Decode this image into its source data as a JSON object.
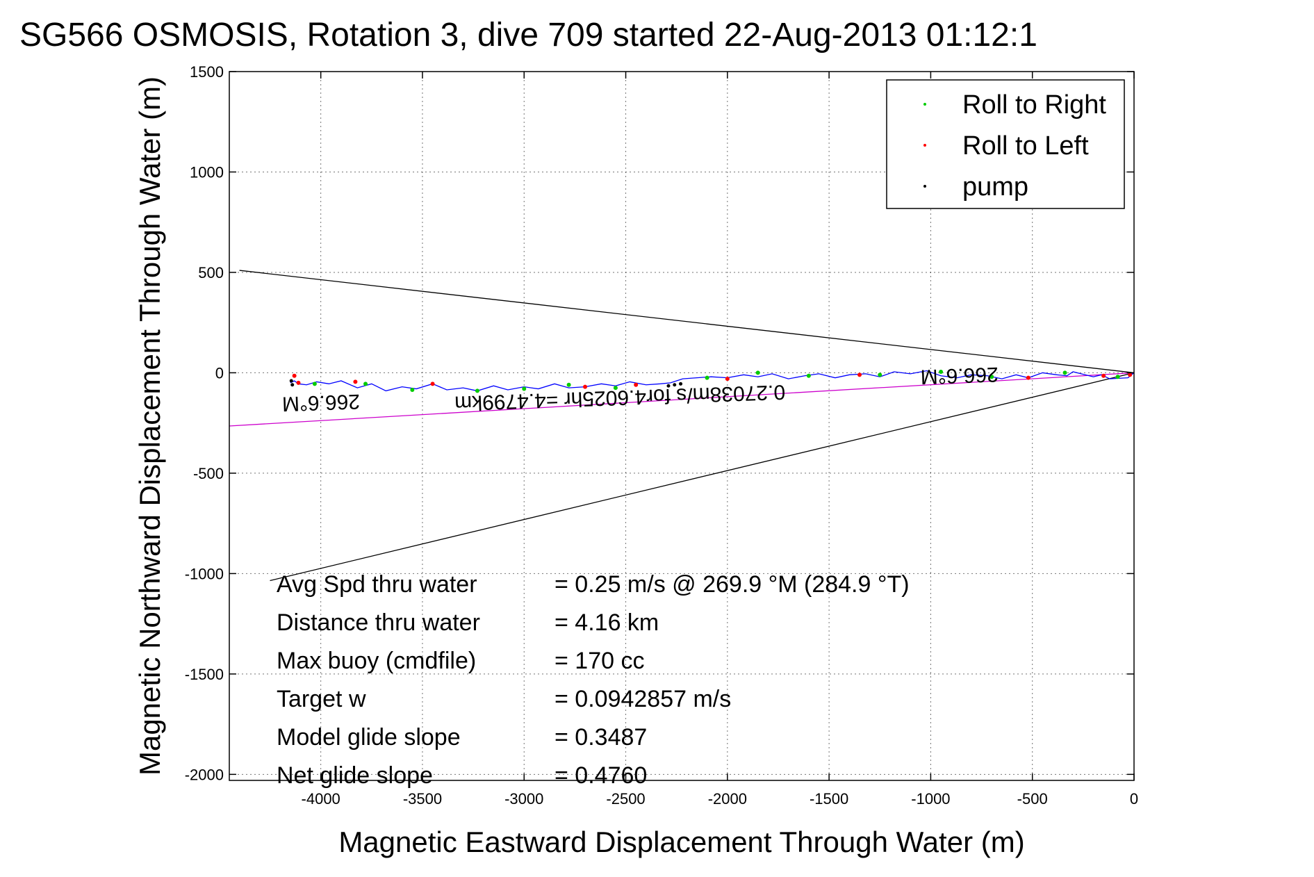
{
  "chart_data": {
    "type": "scatter",
    "title": "SG566 OSMOSIS, Rotation 3, dive 709 started 22-Aug-2013 01:12:1",
    "xlabel": "Magnetic Eastward Displacement Through Water (m)",
    "ylabel": "Magnetic Northward Displacement Through Water (m)",
    "xlim": [
      -4450,
      0
    ],
    "ylim": [
      -2030,
      1500
    ],
    "grid": true,
    "x_ticks": [
      -4000,
      -3500,
      -3000,
      -2500,
      -2000,
      -1500,
      -1000,
      -500,
      0
    ],
    "x_tick_labels": [
      "-4000",
      "-3500",
      "-3000",
      "-2500",
      "-2000",
      "-1500",
      "-1000",
      "-500",
      "0"
    ],
    "y_ticks": [
      1500,
      1000,
      500,
      0,
      -500,
      -1000,
      -1500,
      -2000
    ],
    "y_tick_labels": [
      "1500",
      "1000",
      "500",
      "0",
      "-500",
      "-1000",
      "-1500",
      "-2000"
    ],
    "legend": {
      "placement": "top-right",
      "entries": [
        {
          "label": "Roll to Right",
          "color": "#00cc00"
        },
        {
          "label": "Roll to Left",
          "color": "#ff0000"
        },
        {
          "label": "pump",
          "color": "#000000"
        }
      ]
    },
    "series": [
      {
        "name": "track",
        "color": "#0000ff",
        "x": [
          0,
          -30,
          -120,
          -160,
          -200,
          -260,
          -300,
          -330,
          -380,
          -450,
          -520,
          -580,
          -650,
          -720,
          -800,
          -870,
          -950,
          -1020,
          -1100,
          -1180,
          -1250,
          -1320,
          -1400,
          -1470,
          -1550,
          -1620,
          -1700,
          -1780,
          -1850,
          -1920,
          -2000,
          -2080,
          -2150,
          -2220,
          -2280,
          -2330,
          -2400,
          -2480,
          -2550,
          -2620,
          -2700,
          -2780,
          -2850,
          -2930,
          -3000,
          -3080,
          -3150,
          -3230,
          -3300,
          -3380,
          -3450,
          -3530,
          -3600,
          -3680,
          -3750,
          -3820,
          -3900,
          -3960,
          -4020,
          -4070,
          -4110,
          -4130,
          -4150
        ],
        "y": [
          0,
          -25,
          -30,
          -10,
          -20,
          -5,
          5,
          -15,
          -10,
          0,
          -25,
          -10,
          -30,
          -15,
          -10,
          -25,
          -15,
          10,
          -5,
          5,
          -20,
          -5,
          -10,
          -25,
          -5,
          -15,
          -30,
          -5,
          -20,
          -10,
          -25,
          -20,
          -25,
          -30,
          -50,
          -55,
          -60,
          -45,
          -65,
          -55,
          -70,
          -75,
          -55,
          -80,
          -70,
          -85,
          -65,
          -90,
          -75,
          -85,
          -55,
          -80,
          -70,
          -90,
          -55,
          -75,
          -40,
          -55,
          -45,
          -60,
          -55,
          -40,
          -50
        ]
      },
      {
        "name": "Roll to Right",
        "color": "#00cc00",
        "x": [
          -80,
          -340,
          -700,
          -950,
          -1250,
          -1600,
          -1850,
          -2100,
          -2550,
          -2780,
          -3000,
          -3230,
          -3550,
          -3780,
          -4030
        ],
        "y": [
          -20,
          0,
          -20,
          5,
          -10,
          -15,
          0,
          -25,
          -75,
          -60,
          -80,
          -90,
          -85,
          -55,
          -55
        ]
      },
      {
        "name": "Roll to Left",
        "color": "#ff0000",
        "x": [
          -20,
          -150,
          -520,
          -1350,
          -2000,
          -2450,
          -2700,
          -3450,
          -3830,
          -4110,
          -4130
        ],
        "y": [
          -10,
          -15,
          -25,
          -10,
          -30,
          -60,
          -70,
          -55,
          -45,
          -50,
          -15
        ]
      },
      {
        "name": "pump",
        "color": "#000000",
        "x": [
          -2230,
          -2260,
          -2290,
          -4140,
          -4145
        ],
        "y": [
          -55,
          -60,
          -65,
          -60,
          -40
        ]
      }
    ],
    "lines": [
      {
        "color": "#000000",
        "x": [
          0,
          -4400
        ],
        "y": [
          0,
          510
        ]
      },
      {
        "color": "#000000",
        "x": [
          0,
          -4250
        ],
        "y": [
          0,
          -1035
        ]
      },
      {
        "color": "#cc00cc",
        "x": [
          0,
          -4450
        ],
        "y": [
          0,
          -265
        ]
      }
    ],
    "rotated_annotations": [
      {
        "text": "266.6°M",
        "x": -4000,
        "y": -115
      },
      {
        "text": "266.6°M",
        "x": -860,
        "y": 20
      },
      {
        "text": "0.27038m/s for4.6025hr =4.4799km",
        "x": -2530,
        "y": -90
      }
    ],
    "annotations": [
      {
        "label": "Avg Spd thru water",
        "value": "=  0.25 m/s @ 269.9 °M (284.9 °T)"
      },
      {
        "label": "Distance thru water",
        "value": "=  4.16 km"
      },
      {
        "label": "Max buoy (cmdfile)",
        "value": "= 170 cc"
      },
      {
        "label": "Target w",
        "value": "= 0.0942857 m/s"
      },
      {
        "label": "Model glide slope",
        "value": "= 0.3487"
      },
      {
        "label": "Net glide slope",
        "value": "= 0.4760"
      }
    ]
  }
}
